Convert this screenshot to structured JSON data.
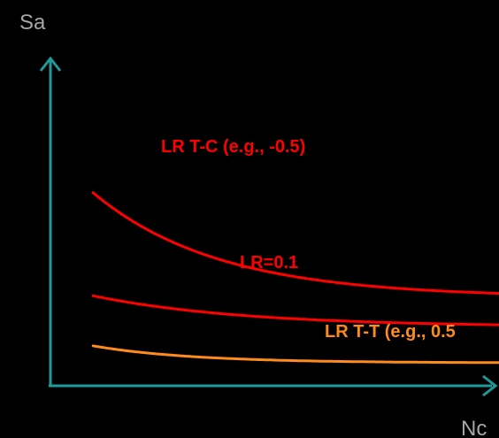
{
  "chart_data": {
    "type": "line",
    "title": "",
    "xlabel": "Nc",
    "ylabel": "Sa",
    "grid": false,
    "legend": "none",
    "axis_color": "#1f9a9a",
    "series": [
      {
        "id": "lr-tc",
        "label": "LR T-C (e.g., -0.5)",
        "color": "#ff0000",
        "shape": {
          "a": 0.2,
          "b": 3.2,
          "c": 0.27,
          "k": 3.6
        }
      },
      {
        "id": "lr-01",
        "label": "LR=0.1",
        "color": "#ff0000",
        "shape": {
          "a": 0.2,
          "b": 0.95,
          "c": 0.18,
          "k": 3.0
        }
      },
      {
        "id": "lr-tt",
        "label": "LR T-T (e.g., 0.5",
        "color": "#ff8c1a",
        "shape": {
          "a": 0.2,
          "b": 0.52,
          "c": 0.07,
          "k": 4.5
        }
      }
    ]
  }
}
